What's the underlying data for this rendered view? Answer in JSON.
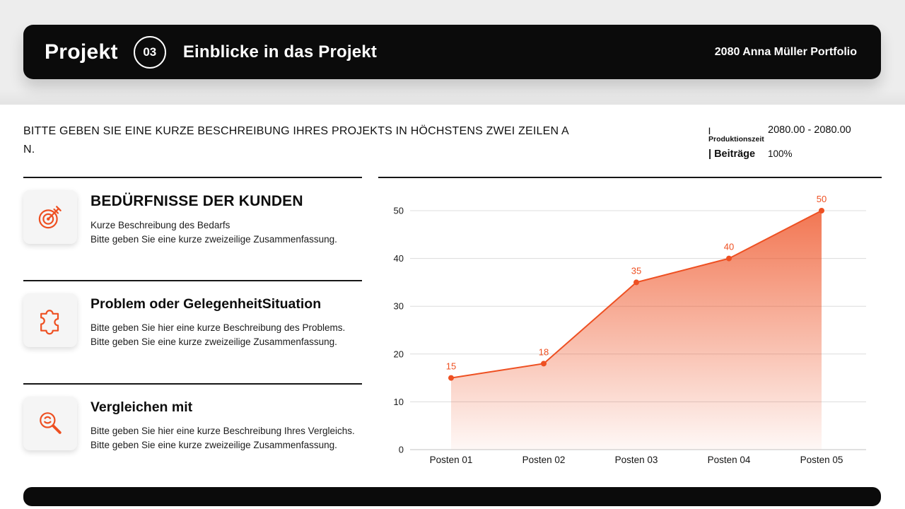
{
  "header": {
    "brand": "Projekt",
    "number": "03",
    "title": "Einblicke in das Projekt",
    "portfolio": "2080 Anna Müller Portfolio"
  },
  "intro": {
    "lines": [
      "BITTE GEBEN SIE EINE KURZE BESCHREIBUNG IHRES PROJEKTS IN HÖCHSTENS ZWEI ZEILEN A",
      "N."
    ],
    "stats": [
      {
        "label": "| Produktionszeit",
        "value": "2080.00 - 2080.00"
      },
      {
        "label": "| Beiträge",
        "value": "100%"
      }
    ]
  },
  "sections": [
    {
      "icon": "target-icon",
      "title": "BEDÜRFNISSE DER KUNDEN",
      "lines": [
        "Kurze Beschreibung des Bedarfs",
        "Bitte geben Sie eine kurze zweizeilige Zusammenfassung."
      ]
    },
    {
      "icon": "puzzle-icon",
      "title": "Problem oder GelegenheitSituation",
      "lines": [
        "Bitte geben Sie hier eine kurze Beschreibung des Problems.",
        "Bitte geben Sie eine kurze zweizeilige Zusammenfassung."
      ]
    },
    {
      "icon": "magnifier-icon",
      "title": "Vergleichen mit",
      "lines": [
        "Bitte geben Sie hier eine kurze Beschreibung Ihres Vergleichs.",
        "Bitte geben Sie eine kurze zweizeilige Zusammenfassung."
      ]
    }
  ],
  "chart_data": {
    "type": "area",
    "categories": [
      "Posten 01",
      "Posten 02",
      "Posten 03",
      "Posten 04",
      "Posten 05"
    ],
    "values": [
      15,
      18,
      35,
      40,
      50
    ],
    "ylim": [
      0,
      50
    ],
    "yticks": [
      0,
      10,
      20,
      30,
      40,
      50
    ],
    "grid": true,
    "legend": false,
    "title": "",
    "xlabel": "",
    "ylabel": "",
    "line_color": "#ee5022",
    "label_color": "#ee5022"
  },
  "colors": {
    "accent": "#ee5022",
    "header_bg": "#0b0b0b",
    "strip_bg": "#ededed"
  }
}
